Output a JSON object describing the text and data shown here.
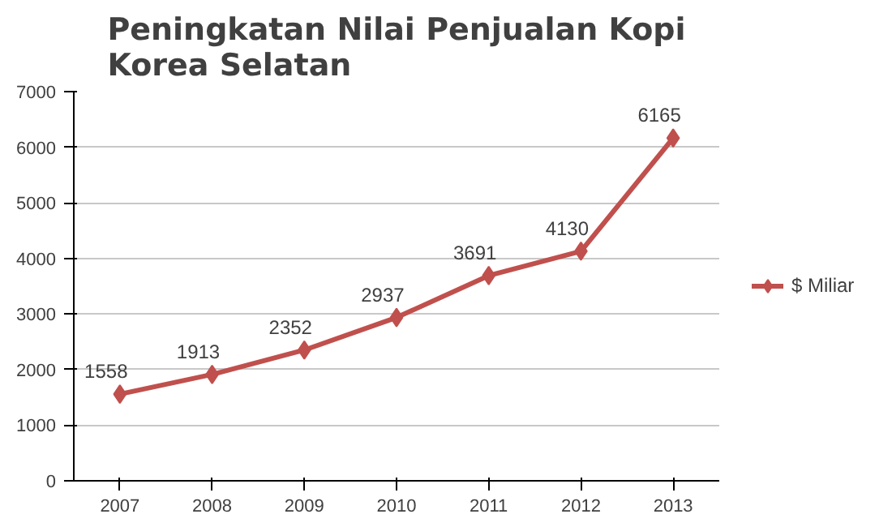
{
  "chart_data": {
    "type": "line",
    "title": "Peningkatan Nilai Penjualan Kopi Korea Selatan",
    "categories": [
      "2007",
      "2008",
      "2009",
      "2010",
      "2011",
      "2012",
      "2013"
    ],
    "series": [
      {
        "name": "$ Miliar",
        "color": "#c0504d",
        "values": [
          1558,
          1913,
          2352,
          2937,
          3691,
          4130,
          6165
        ]
      }
    ],
    "ylim": [
      0,
      7000
    ],
    "yticks": [
      0,
      1000,
      2000,
      3000,
      4000,
      5000,
      6000,
      7000
    ],
    "grid": "y",
    "legend": "right",
    "marker": "diamond",
    "data_labels": true
  }
}
